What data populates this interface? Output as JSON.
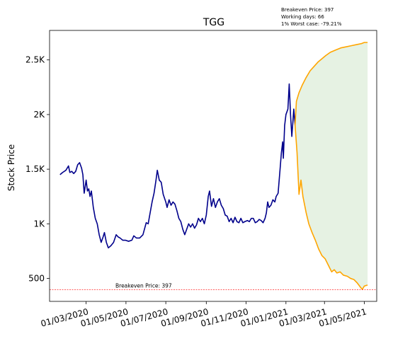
{
  "chart_data": {
    "type": "line",
    "title": "TGG",
    "xlabel": "",
    "ylabel": "Stock Price",
    "info_lines": [
      "Breakeven Price: 397",
      "Working days: 66",
      "1% Worst case: -79.21%"
    ],
    "breakeven": {
      "value": 397,
      "label": "Breakeven Price: 397",
      "color": "#ff0000"
    },
    "xlim": [
      "2020-01-05",
      "2021-05-20"
    ],
    "ylim": [
      290,
      2770
    ],
    "y_ticks": [
      {
        "value": 500,
        "label": "500"
      },
      {
        "value": 1000,
        "label": "1K"
      },
      {
        "value": 1500,
        "label": "1.5K"
      },
      {
        "value": 2000,
        "label": "2K"
      },
      {
        "value": 2500,
        "label": "2.5K"
      }
    ],
    "x_ticks": [
      {
        "value": "2020-03-01",
        "label": "01/03/2020"
      },
      {
        "value": "2020-05-01",
        "label": "01/05/2020"
      },
      {
        "value": "2020-07-01",
        "label": "01/07/2020"
      },
      {
        "value": "2020-09-01",
        "label": "01/09/2020"
      },
      {
        "value": "2020-11-01",
        "label": "01/11/2020"
      },
      {
        "value": "2021-01-01",
        "label": "01/01/2021"
      },
      {
        "value": "2021-03-01",
        "label": "01/03/2021"
      },
      {
        "value": "2021-05-01",
        "label": "01/05/2021"
      }
    ],
    "grid": false,
    "series": [
      {
        "color": "#00008b",
        "points": [
          [
            "2020-01-21",
            1450
          ],
          [
            "2020-01-25",
            1470
          ],
          [
            "2020-01-30",
            1490
          ],
          [
            "2020-02-03",
            1530
          ],
          [
            "2020-02-05",
            1470
          ],
          [
            "2020-02-08",
            1480
          ],
          [
            "2020-02-11",
            1460
          ],
          [
            "2020-02-14",
            1480
          ],
          [
            "2020-02-17",
            1540
          ],
          [
            "2020-02-20",
            1560
          ],
          [
            "2020-02-23",
            1510
          ],
          [
            "2020-02-25",
            1450
          ],
          [
            "2020-02-27",
            1280
          ],
          [
            "2020-03-01",
            1400
          ],
          [
            "2020-03-03",
            1300
          ],
          [
            "2020-03-05",
            1320
          ],
          [
            "2020-03-07",
            1250
          ],
          [
            "2020-03-09",
            1300
          ],
          [
            "2020-03-12",
            1150
          ],
          [
            "2020-03-15",
            1050
          ],
          [
            "2020-03-18",
            1000
          ],
          [
            "2020-03-21",
            900
          ],
          [
            "2020-03-24",
            830
          ],
          [
            "2020-03-27",
            880
          ],
          [
            "2020-03-29",
            920
          ],
          [
            "2020-04-01",
            830
          ],
          [
            "2020-04-04",
            780
          ],
          [
            "2020-04-08",
            800
          ],
          [
            "2020-04-12",
            830
          ],
          [
            "2020-04-16",
            900
          ],
          [
            "2020-04-19",
            880
          ],
          [
            "2020-04-22",
            870
          ],
          [
            "2020-04-26",
            850
          ],
          [
            "2020-04-30",
            850
          ],
          [
            "2020-05-05",
            840
          ],
          [
            "2020-05-10",
            850
          ],
          [
            "2020-05-13",
            890
          ],
          [
            "2020-05-17",
            870
          ],
          [
            "2020-05-22",
            870
          ],
          [
            "2020-05-27",
            900
          ],
          [
            "2020-06-01",
            1010
          ],
          [
            "2020-06-04",
            1000
          ],
          [
            "2020-06-07",
            1100
          ],
          [
            "2020-06-10",
            1200
          ],
          [
            "2020-06-13",
            1280
          ],
          [
            "2020-06-16",
            1400
          ],
          [
            "2020-06-18",
            1490
          ],
          [
            "2020-06-21",
            1400
          ],
          [
            "2020-06-24",
            1380
          ],
          [
            "2020-06-27",
            1270
          ],
          [
            "2020-07-01",
            1200
          ],
          [
            "2020-07-03",
            1150
          ],
          [
            "2020-07-06",
            1220
          ],
          [
            "2020-07-09",
            1170
          ],
          [
            "2020-07-12",
            1200
          ],
          [
            "2020-07-15",
            1180
          ],
          [
            "2020-07-18",
            1120
          ],
          [
            "2020-07-21",
            1050
          ],
          [
            "2020-07-24",
            1020
          ],
          [
            "2020-07-27",
            950
          ],
          [
            "2020-07-30",
            900
          ],
          [
            "2020-08-02",
            950
          ],
          [
            "2020-08-05",
            1000
          ],
          [
            "2020-08-08",
            970
          ],
          [
            "2020-08-11",
            1000
          ],
          [
            "2020-08-14",
            960
          ],
          [
            "2020-08-17",
            990
          ],
          [
            "2020-08-20",
            1050
          ],
          [
            "2020-08-23",
            1020
          ],
          [
            "2020-08-26",
            1050
          ],
          [
            "2020-08-29",
            1000
          ],
          [
            "2020-09-01",
            1080
          ],
          [
            "2020-09-04",
            1250
          ],
          [
            "2020-09-06",
            1300
          ],
          [
            "2020-09-09",
            1160
          ],
          [
            "2020-09-12",
            1230
          ],
          [
            "2020-09-15",
            1150
          ],
          [
            "2020-09-18",
            1200
          ],
          [
            "2020-09-21",
            1230
          ],
          [
            "2020-09-24",
            1170
          ],
          [
            "2020-09-27",
            1140
          ],
          [
            "2020-09-30",
            1080
          ],
          [
            "2020-10-03",
            1070
          ],
          [
            "2020-10-06",
            1020
          ],
          [
            "2020-10-09",
            1050
          ],
          [
            "2020-10-12",
            1010
          ],
          [
            "2020-10-15",
            1060
          ],
          [
            "2020-10-18",
            1020
          ],
          [
            "2020-10-21",
            1010
          ],
          [
            "2020-10-24",
            1050
          ],
          [
            "2020-10-27",
            1010
          ],
          [
            "2020-10-30",
            1020
          ],
          [
            "2020-11-03",
            1030
          ],
          [
            "2020-11-06",
            1020
          ],
          [
            "2020-11-09",
            1050
          ],
          [
            "2020-11-12",
            1050
          ],
          [
            "2020-11-15",
            1010
          ],
          [
            "2020-11-18",
            1020
          ],
          [
            "2020-11-21",
            1040
          ],
          [
            "2020-11-24",
            1030
          ],
          [
            "2020-11-27",
            1010
          ],
          [
            "2020-11-30",
            1050
          ],
          [
            "2020-12-02",
            1100
          ],
          [
            "2020-12-04",
            1200
          ],
          [
            "2020-12-06",
            1150
          ],
          [
            "2020-12-09",
            1170
          ],
          [
            "2020-12-12",
            1220
          ],
          [
            "2020-12-15",
            1200
          ],
          [
            "2020-12-17",
            1250
          ],
          [
            "2020-12-20",
            1280
          ],
          [
            "2020-12-23",
            1500
          ],
          [
            "2020-12-25",
            1650
          ],
          [
            "2020-12-27",
            1750
          ],
          [
            "2020-12-28",
            1600
          ],
          [
            "2020-12-30",
            1900
          ],
          [
            "2021-01-01",
            2000
          ],
          [
            "2021-01-04",
            2050
          ],
          [
            "2021-01-06",
            2280
          ],
          [
            "2021-01-08",
            2000
          ],
          [
            "2021-01-10",
            1800
          ],
          [
            "2021-01-13",
            2050
          ],
          [
            "2021-01-15",
            1900
          ]
        ]
      },
      {
        "color": "#ffa500",
        "points": [
          [
            "2021-01-15",
            1900
          ],
          [
            "2021-01-17",
            2120
          ],
          [
            "2021-01-21",
            2200
          ],
          [
            "2021-01-26",
            2270
          ],
          [
            "2021-02-01",
            2340
          ],
          [
            "2021-02-07",
            2400
          ],
          [
            "2021-02-13",
            2440
          ],
          [
            "2021-02-19",
            2480
          ],
          [
            "2021-02-25",
            2510
          ],
          [
            "2021-03-03",
            2540
          ],
          [
            "2021-03-10",
            2570
          ],
          [
            "2021-03-18",
            2590
          ],
          [
            "2021-03-26",
            2610
          ],
          [
            "2021-04-03",
            2620
          ],
          [
            "2021-04-11",
            2630
          ],
          [
            "2021-04-19",
            2640
          ],
          [
            "2021-04-27",
            2650
          ],
          [
            "2021-05-01",
            2660
          ],
          [
            "2021-05-06",
            2660
          ]
        ]
      },
      {
        "color": "#ffa500",
        "points": [
          [
            "2021-01-15",
            1900
          ],
          [
            "2021-01-18",
            1650
          ],
          [
            "2021-01-21",
            1270
          ],
          [
            "2021-01-24",
            1400
          ],
          [
            "2021-01-27",
            1250
          ],
          [
            "2021-02-01",
            1100
          ],
          [
            "2021-02-05",
            1000
          ],
          [
            "2021-02-10",
            920
          ],
          [
            "2021-02-15",
            850
          ],
          [
            "2021-02-20",
            770
          ],
          [
            "2021-02-25",
            710
          ],
          [
            "2021-03-02",
            680
          ],
          [
            "2021-03-07",
            620
          ],
          [
            "2021-03-12",
            560
          ],
          [
            "2021-03-16",
            580
          ],
          [
            "2021-03-20",
            550
          ],
          [
            "2021-03-25",
            560
          ],
          [
            "2021-03-30",
            530
          ],
          [
            "2021-04-05",
            520
          ],
          [
            "2021-04-10",
            500
          ],
          [
            "2021-04-15",
            490
          ],
          [
            "2021-04-20",
            460
          ],
          [
            "2021-04-25",
            420
          ],
          [
            "2021-04-28",
            400
          ],
          [
            "2021-05-01",
            430
          ],
          [
            "2021-05-06",
            440
          ]
        ]
      }
    ]
  }
}
